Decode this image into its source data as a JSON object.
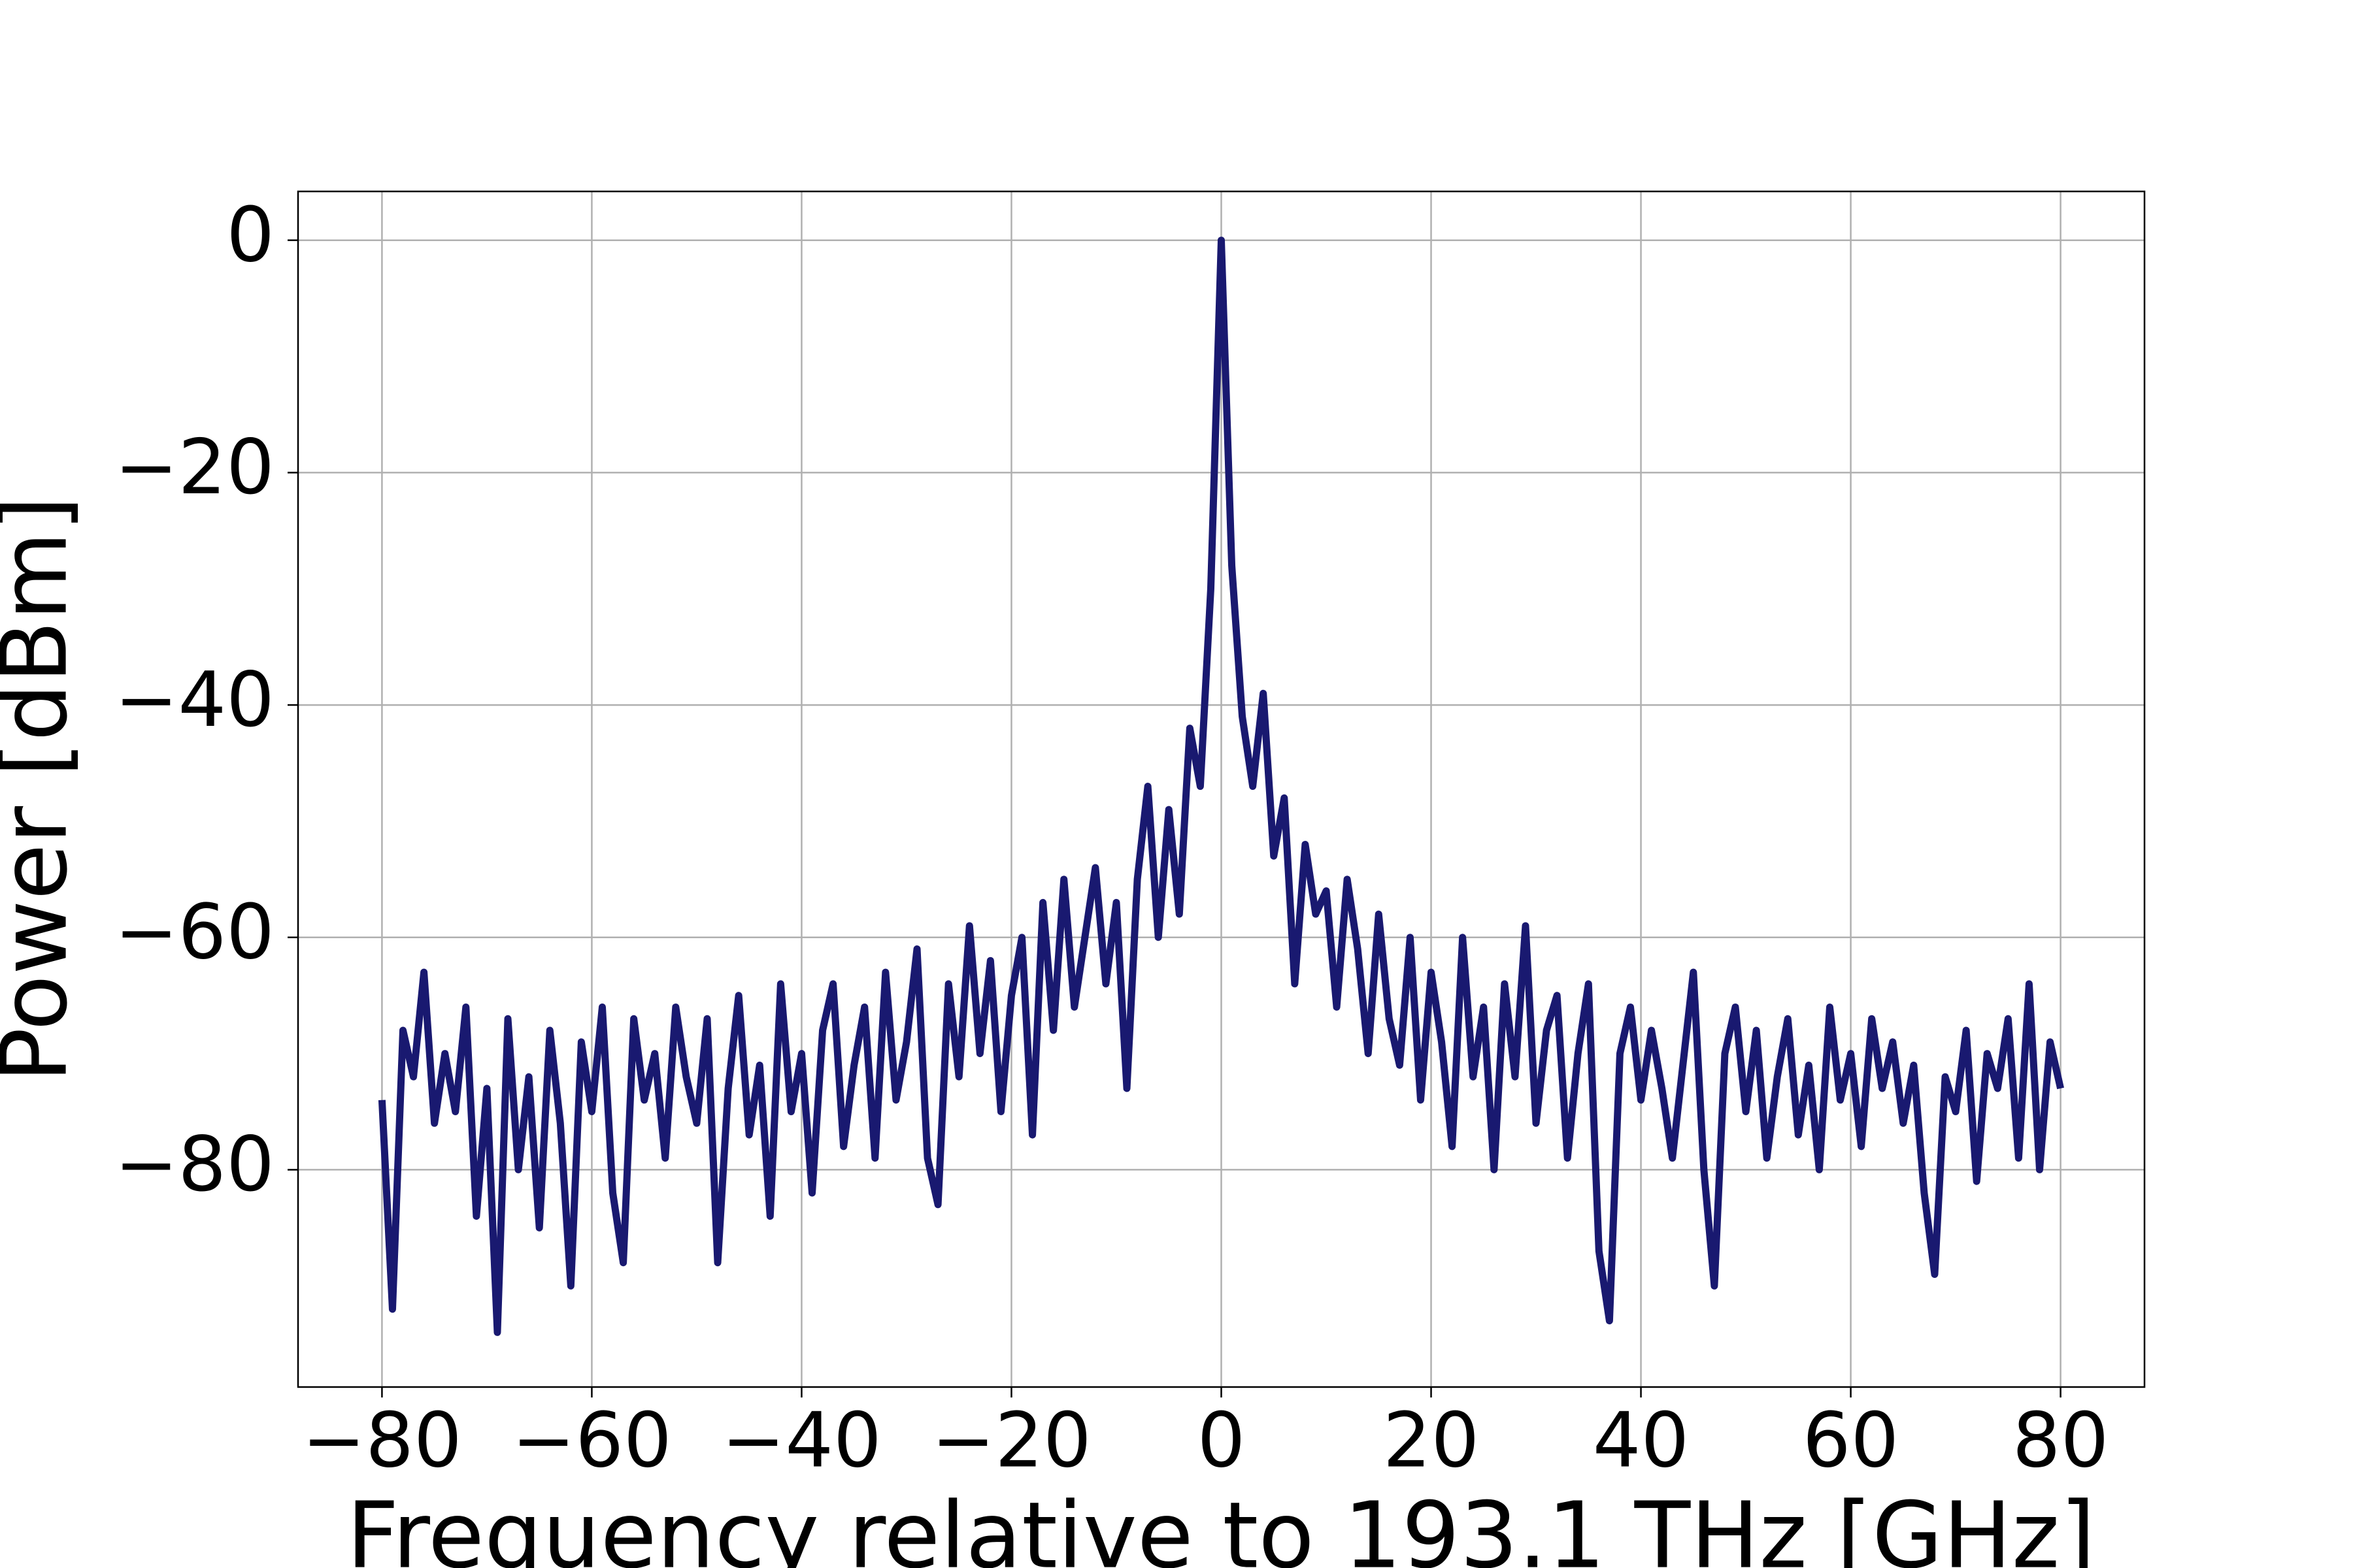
{
  "chart_data": {
    "type": "line",
    "xlabel": "Frequency relative to 193.1 THz [GHz]",
    "ylabel": "Power [dBm]",
    "color": "#191970",
    "grid": true,
    "xlim": [
      -88,
      88
    ],
    "ylim": [
      -98.7,
      4.2
    ],
    "xticks": [
      {
        "value": -80,
        "label": "−80"
      },
      {
        "value": -60,
        "label": "−60"
      },
      {
        "value": -40,
        "label": "−40"
      },
      {
        "value": -20,
        "label": "−20"
      },
      0,
      20,
      40,
      60,
      80
    ],
    "yticks": [
      0,
      {
        "value": -20,
        "label": "−20"
      },
      {
        "value": -40,
        "label": "−40"
      },
      {
        "value": -60,
        "label": "−60"
      },
      {
        "value": -80,
        "label": "−80"
      }
    ],
    "x": [
      -80,
      -79,
      -78,
      -77,
      -76,
      -75,
      -74,
      -73,
      -72,
      -71,
      -70,
      -69,
      -68,
      -67,
      -66,
      -65,
      -64,
      -63,
      -62,
      -61,
      -60,
      -59,
      -58,
      -57,
      -56,
      -55,
      -54,
      -53,
      -52,
      -51,
      -50,
      -49,
      -48,
      -47,
      -46,
      -45,
      -44,
      -43,
      -42,
      -41,
      -40,
      -39,
      -38,
      -37,
      -36,
      -35,
      -34,
      -33,
      -32,
      -31,
      -30,
      -29,
      -28,
      -27,
      -26,
      -25,
      -24,
      -23,
      -22,
      -21,
      -20,
      -19,
      -18,
      -17,
      -16,
      -15,
      -14,
      -13,
      -12,
      -11,
      -10,
      -9,
      -8,
      -7,
      -6,
      -5,
      -4,
      -3,
      -2,
      -1,
      0,
      1,
      2,
      3,
      4,
      5,
      6,
      7,
      8,
      9,
      10,
      11,
      12,
      13,
      14,
      15,
      16,
      17,
      18,
      19,
      20,
      21,
      22,
      23,
      24,
      25,
      26,
      27,
      28,
      29,
      30,
      31,
      32,
      33,
      34,
      35,
      36,
      37,
      38,
      39,
      40,
      41,
      42,
      43,
      44,
      45,
      46,
      47,
      48,
      49,
      50,
      51,
      52,
      53,
      54,
      55,
      56,
      57,
      58,
      59,
      60,
      61,
      62,
      63,
      64,
      65,
      66,
      67,
      68,
      69,
      70,
      71,
      72,
      73,
      74,
      75,
      76,
      77,
      78,
      79,
      80
    ],
    "values": [
      -74,
      -92,
      -68,
      -72,
      -63,
      -76,
      -70,
      -75,
      -66,
      -84,
      -73,
      -94,
      -67,
      -80,
      -72,
      -85,
      -68,
      -76,
      -90,
      -69,
      -75,
      -66,
      -82,
      -88,
      -67,
      -74,
      -70,
      -79,
      -66,
      -72,
      -76,
      -67,
      -88,
      -73,
      -65,
      -77,
      -71,
      -84,
      -64,
      -75,
      -70,
      -82,
      -68,
      -64,
      -78,
      -71,
      -66,
      -79,
      -63,
      -74,
      -69,
      -61,
      -79,
      -83,
      -64,
      -72,
      -59,
      -70,
      -62,
      -75,
      -65,
      -60,
      -77,
      -57,
      -68,
      -55,
      -66,
      -60,
      -54,
      -64,
      -57,
      -73,
      -55,
      -47,
      -60,
      -49,
      -58,
      -42,
      -47,
      -30,
      0,
      -28,
      -41,
      -47,
      -39,
      -53,
      -48,
      -64,
      -52,
      -58,
      -56,
      -66,
      -55,
      -61,
      -70,
      -58,
      -67,
      -71,
      -60,
      -74,
      -63,
      -69,
      -78,
      -60,
      -72,
      -66,
      -80,
      -64,
      -72,
      -59,
      -76,
      -68,
      -65,
      -79,
      -70,
      -64,
      -87,
      -93,
      -70,
      -66,
      -74,
      -68,
      -73,
      -79,
      -71,
      -63,
      -80,
      -90,
      -70,
      -66,
      -75,
      -68,
      -79,
      -72,
      -67,
      -77,
      -71,
      -80,
      -66,
      -74,
      -70,
      -78,
      -67,
      -73,
      -69,
      -76,
      -71,
      -82,
      -89,
      -72,
      -75,
      -68,
      -81,
      -70,
      -73,
      -67,
      -79,
      -64,
      -80,
      -69,
      -73
    ]
  }
}
